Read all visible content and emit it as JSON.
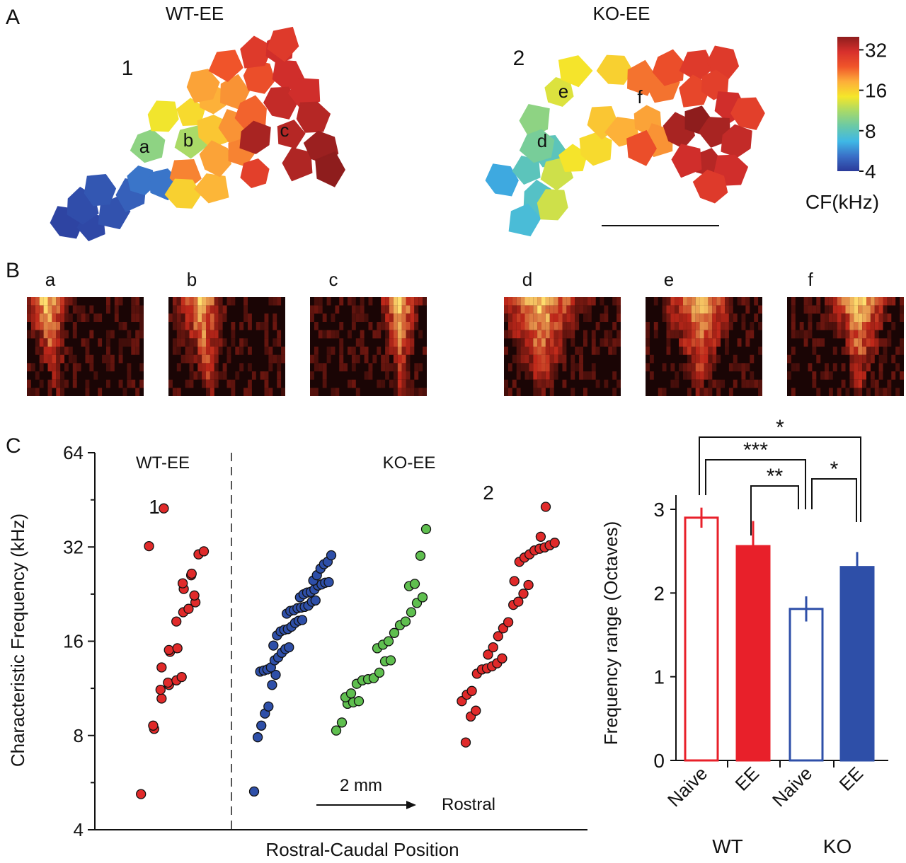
{
  "panel_letters": {
    "A": "A",
    "B": "B",
    "C": "C"
  },
  "map_titles": {
    "wt": "WT-EE",
    "ko": "KO-EE"
  },
  "map_numbers": {
    "wt": "1",
    "ko": "2"
  },
  "site_labels": [
    "a",
    "b",
    "c",
    "d",
    "e",
    "f"
  ],
  "colorbar": {
    "ticks": [
      "32",
      "16",
      "8",
      "4"
    ],
    "tick_values_khz": [
      32,
      16,
      8,
      4
    ],
    "range_khz": [
      4,
      40
    ],
    "label": "CF(kHz)",
    "colors": [
      "#2b3a9a",
      "#3a6fc7",
      "#3fb8e6",
      "#69c9a8",
      "#a6d96a",
      "#f5e62a",
      "#fdae3a",
      "#f0552a",
      "#d7302c",
      "#8e1d1d"
    ]
  },
  "tuning_labels": [
    "a",
    "b",
    "c",
    "d",
    "e",
    "f"
  ],
  "tuning_colors": {
    "low": "#1a0505",
    "mid": "#c0281a",
    "high": "#ffe070"
  },
  "chart_data": [
    {
      "type": "scatter",
      "title": "",
      "ylabel": "Characteristic Frequency (kHz)",
      "xlabel": "Rostral-Caudal Position",
      "yscale": "log2",
      "ylim": [
        4,
        64
      ],
      "yticks": [
        4,
        8,
        16,
        32,
        64
      ],
      "group_labels": {
        "wt": "WT-EE",
        "ko": "KO-EE"
      },
      "series_labels": [
        "1",
        "2"
      ],
      "scale_bar": {
        "text": "2 mm",
        "direction": "Rostral"
      },
      "series": [
        {
          "color": "#e02a2a",
          "x_rank": [
            0.05,
            0.12,
            0.1,
            0.14,
            0.12,
            0.16,
            0.14,
            0.18,
            0.2,
            0.18,
            0.22,
            0.2,
            0.24,
            0.22,
            0.25,
            0.27,
            0.3,
            0.28,
            0.32,
            0.3,
            0.34,
            0.33,
            0.36,
            0.38,
            0.02,
            0.1
          ],
          "values": [
            5.2,
            8.4,
            8.6,
            10.5,
            11.2,
            11.6,
            11.8,
            12.0,
            12.3,
            13.2,
            14.8,
            15.0,
            15.2,
            18.5,
            19.8,
            20.3,
            21.3,
            22.4,
            23.5,
            24.5,
            26.0,
            26.3,
            30.3,
            31.0,
            32.2,
            42.5
          ]
        },
        {
          "color": "#2e4fa8",
          "x_rank": [
            0,
            1,
            2,
            3,
            4,
            5,
            6,
            7,
            8,
            9,
            10,
            11,
            12,
            13,
            14,
            15,
            16,
            17,
            18,
            19,
            20,
            21,
            22,
            23,
            24,
            25,
            26,
            27,
            28,
            29,
            30,
            31,
            32,
            33,
            34,
            35,
            36,
            37,
            38,
            39,
            40,
            41,
            42,
            43,
            44,
            45,
            46,
            47,
            48
          ],
          "values": [
            5.3,
            7.9,
            8.6,
            9.4,
            9.9,
            11.6,
            12.5,
            12.8,
            12.9,
            13.0,
            13.2,
            13.9,
            14.2,
            14.7,
            15.1,
            15.3,
            15.5,
            16.7,
            17.2,
            17.4,
            17.5,
            17.8,
            18.3,
            18.6,
            18.7,
            19.6,
            20.0,
            20.1,
            20.4,
            20.5,
            20.6,
            20.8,
            21.4,
            21.6,
            22.1,
            22.6,
            22.9,
            23.0,
            23.4,
            24.1,
            24.3,
            24.6,
            24.7,
            25.0,
            26.0,
            27.3,
            28.2,
            28.7,
            30.1
          ]
        },
        {
          "color": "#5fbf4f",
          "x_rank": [
            0,
            1,
            2,
            3,
            4,
            5,
            6,
            7,
            8,
            9,
            10,
            11,
            12,
            13,
            14,
            15,
            16,
            17,
            18,
            19,
            20,
            21,
            22,
            23,
            24,
            25,
            26
          ],
          "values": [
            8.3,
            8.8,
            10.1,
            10.2,
            10.3,
            10.6,
            10.9,
            11.7,
            12.0,
            12.1,
            12.2,
            12.7,
            13.8,
            13.9,
            15.2,
            15.6,
            16.0,
            17.0,
            18.0,
            18.5,
            19.8,
            21.2,
            22.1,
            24.0,
            24.4,
            30.0,
            36.5
          ]
        },
        {
          "color": "#e02a2a",
          "x_rank": [
            0,
            1,
            2,
            3,
            4,
            5,
            6,
            7,
            8,
            9,
            10,
            11,
            12,
            13,
            14,
            15,
            16,
            17,
            18,
            19,
            20,
            21,
            22,
            23,
            24,
            25,
            26,
            27,
            28,
            29,
            30,
            31
          ],
          "values": [
            7.6,
            9.2,
            9.6,
            10.3,
            10.8,
            11.1,
            12.6,
            13.0,
            13.1,
            13.3,
            13.6,
            14.1,
            14.5,
            15.3,
            16.6,
            17.6,
            18.4,
            20.9,
            21.4,
            22.7,
            24.2,
            24.9,
            28.7,
            29.6,
            30.3,
            31.2,
            31.6,
            31.9,
            32.4,
            33.0,
            34.5,
            43.0
          ]
        }
      ]
    },
    {
      "type": "bar",
      "title": "",
      "ylabel": "Frequency range (Octaves)",
      "ylim": [
        0,
        3
      ],
      "yticks": [
        0,
        1,
        2,
        3
      ],
      "categories": [
        "Naive",
        "EE",
        "Naive",
        "EE"
      ],
      "groups": [
        "WT",
        "KO"
      ],
      "values": [
        2.9,
        2.56,
        1.81,
        2.31
      ],
      "errors": [
        0.12,
        0.3,
        0.15,
        0.18
      ],
      "fills": [
        "none",
        "#e8202a",
        "none",
        "#2e4fa8"
      ],
      "edges": [
        "#e8202a",
        "#e8202a",
        "#2e4fa8",
        "#2e4fa8"
      ],
      "significance": [
        {
          "pair": [
            0,
            3
          ],
          "label": "*"
        },
        {
          "pair": [
            0,
            2
          ],
          "label": "***"
        },
        {
          "pair": [
            1,
            2
          ],
          "label": "**"
        },
        {
          "pair": [
            2,
            3
          ],
          "label": "*"
        }
      ]
    }
  ]
}
